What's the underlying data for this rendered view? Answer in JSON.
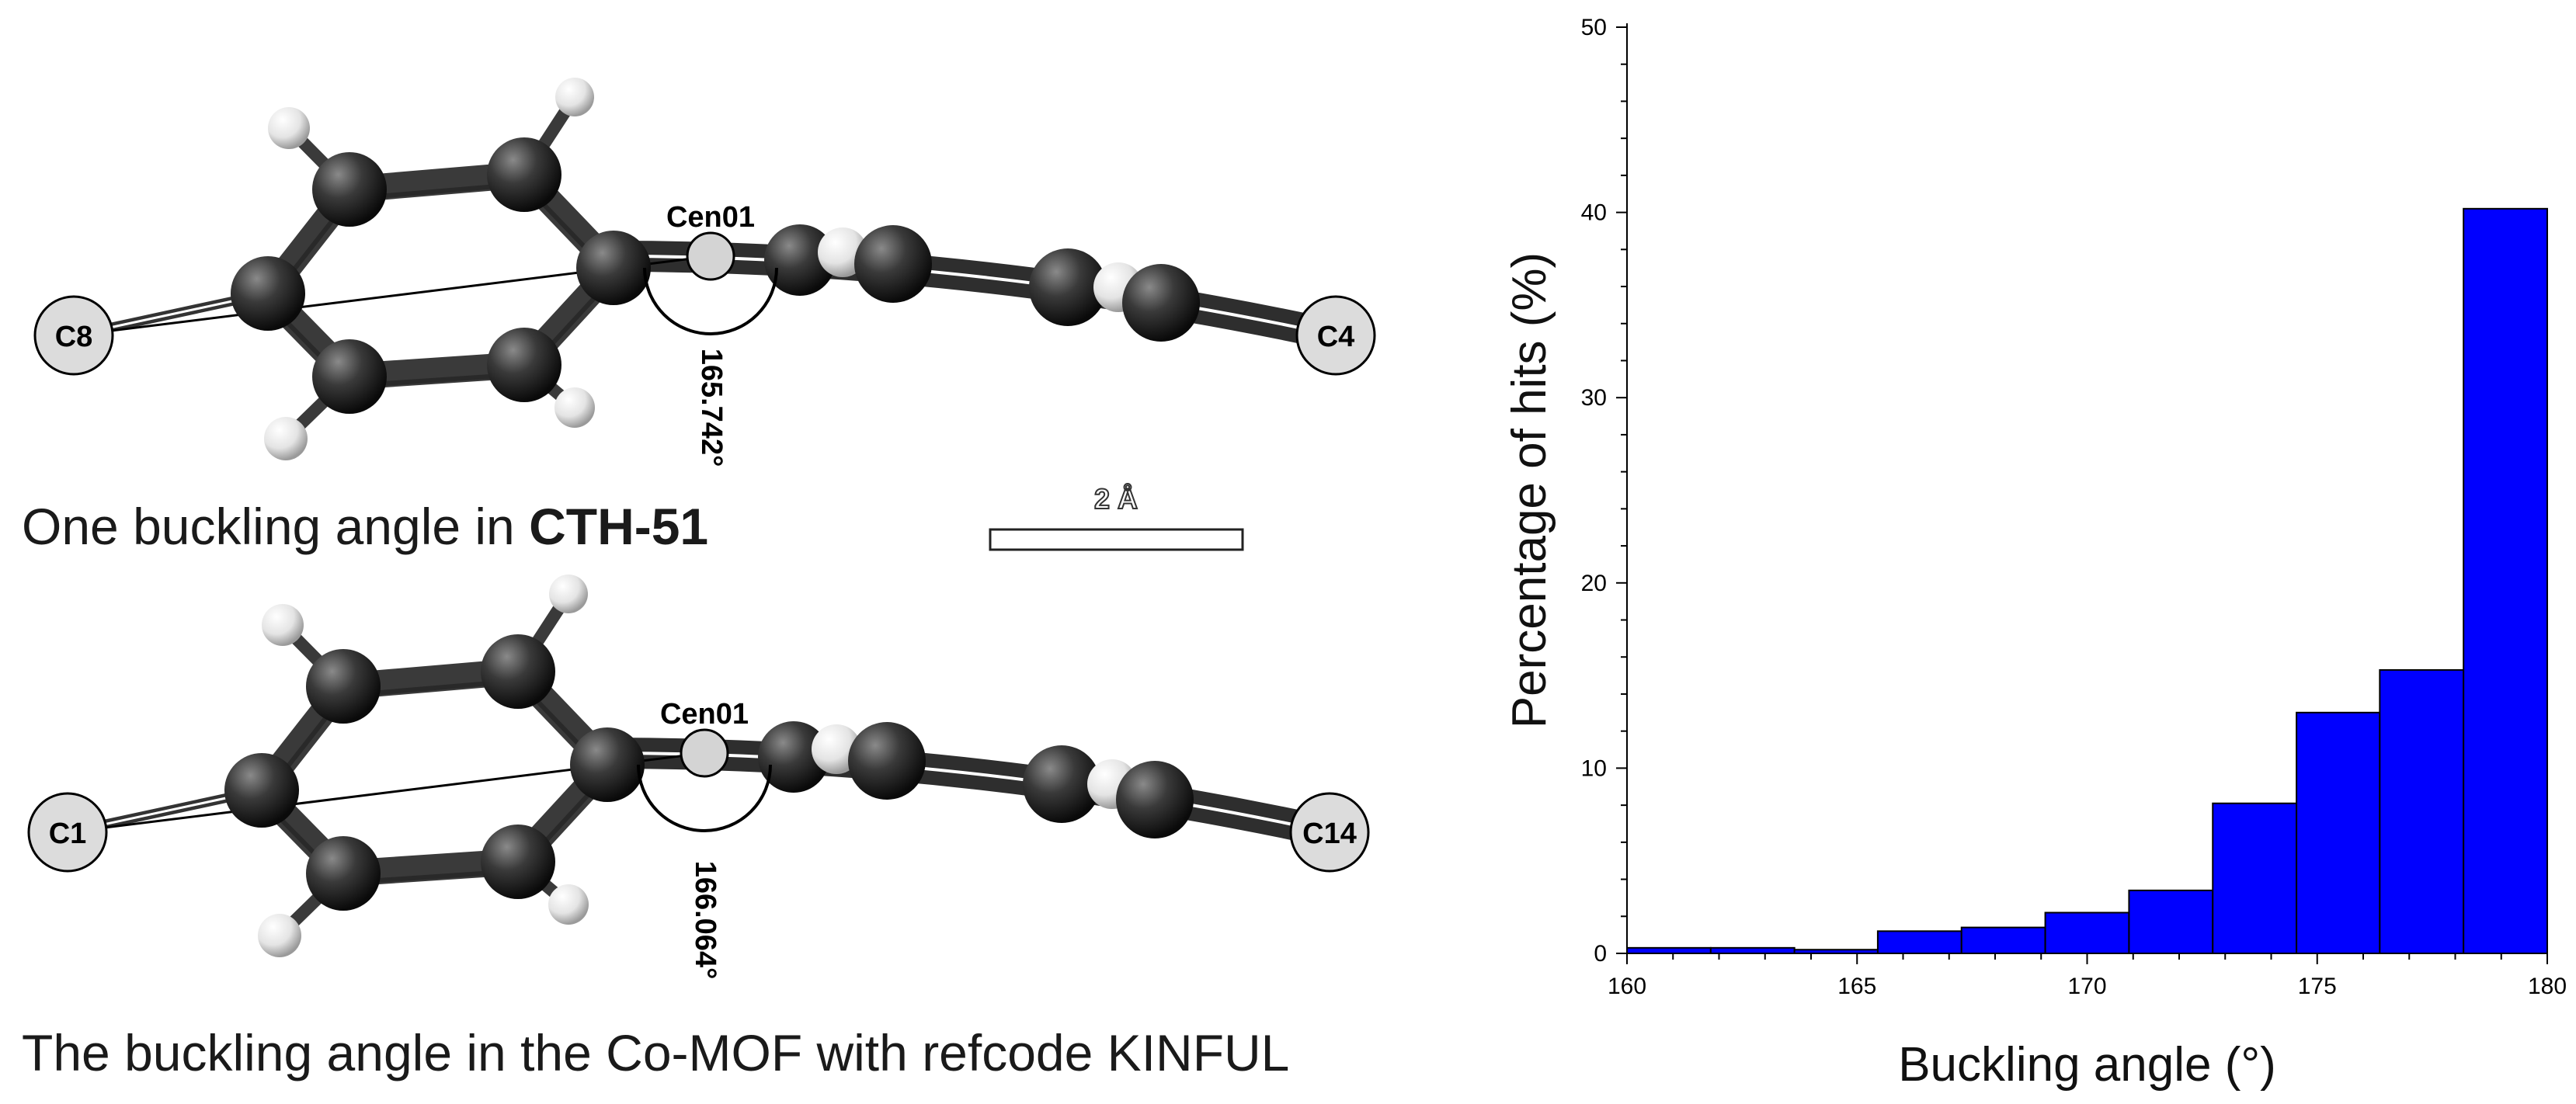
{
  "panels": [
    {
      "caption_prefix": "One buckling angle in ",
      "caption_bold": "CTH-51",
      "atom_left": "C8",
      "atom_right": "C4",
      "centroid": "Cen01",
      "angle": "165.742°"
    },
    {
      "caption_prefix": "The buckling angle in the Co-MOF with refcode KINFUL",
      "caption_bold": "",
      "atom_left": "C1",
      "atom_right": "C14",
      "centroid": "Cen01",
      "angle": "166.064°"
    }
  ],
  "scale_bar": {
    "label": "2 Å"
  },
  "colors": {
    "bar": "#0000ff",
    "carbon": "#3a3a3a",
    "hydrogen": "#e8e8e8",
    "label_atom": "#dcdcdc"
  },
  "chart_data": {
    "type": "bar",
    "title": "",
    "xlabel": "Buckling angle (°)",
    "ylabel": "Percentage of hits (%)",
    "xlim": [
      160,
      180
    ],
    "ylim": [
      0,
      50
    ],
    "xticks": [
      160,
      165,
      170,
      175,
      180
    ],
    "yticks": [
      0,
      10,
      20,
      30,
      40,
      50
    ],
    "bin_edges": [
      160,
      161.82,
      163.64,
      165.45,
      167.27,
      169.09,
      170.91,
      172.73,
      174.55,
      176.36,
      178.18,
      180
    ],
    "values": [
      0.3,
      0.3,
      0.2,
      1.2,
      1.4,
      2.2,
      3.4,
      8.1,
      13.0,
      15.3,
      40.2
    ],
    "grid": false,
    "legend": "none"
  }
}
